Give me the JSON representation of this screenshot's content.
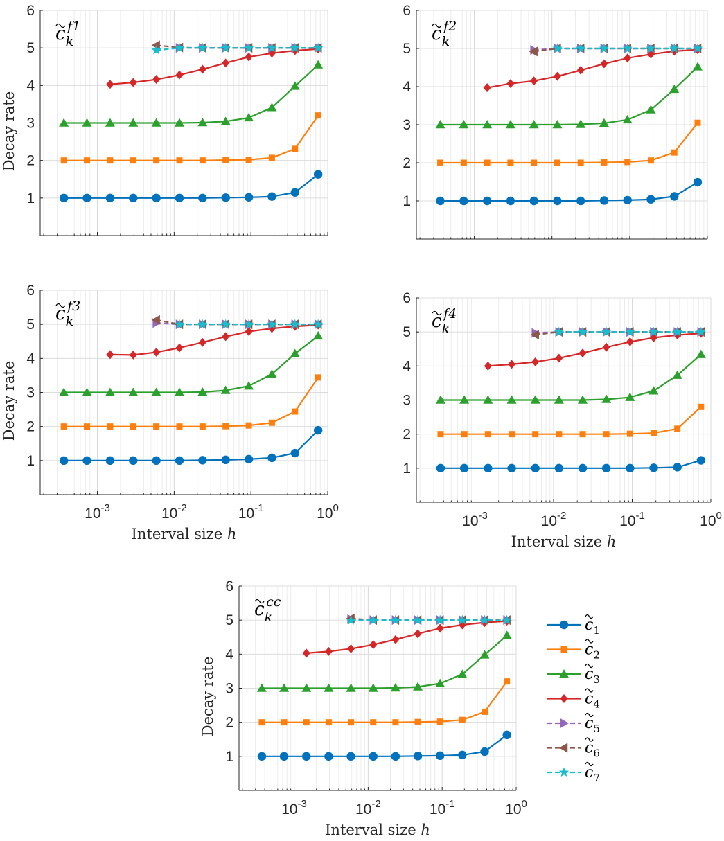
{
  "chart_data": {
    "type": "line",
    "x_scale": "log",
    "xlim": [
      0.00018,
      1.0
    ],
    "ylim": [
      0,
      6
    ],
    "x": [
      0.000366,
      0.000732,
      0.001465,
      0.00293,
      0.00586,
      0.01172,
      0.02344,
      0.04688,
      0.09375,
      0.1875,
      0.375,
      0.75
    ],
    "yticks": [
      "1",
      "2",
      "3",
      "4",
      "5",
      "6"
    ],
    "xticks": [
      {
        "base": "10",
        "exp": "-3",
        "value": 0.001
      },
      {
        "base": "10",
        "exp": "-2",
        "value": 0.01
      },
      {
        "base": "10",
        "exp": "-1",
        "value": 0.1
      },
      {
        "base": "10",
        "exp": "0",
        "value": 1
      }
    ],
    "ylabel": "Decay rate",
    "xlabel": "Interval size h",
    "series_styles": [
      {
        "name": "c̃1",
        "base": "c",
        "sub": "1",
        "color": "#0072BD",
        "marker": "circle",
        "dash": false
      },
      {
        "name": "c̃2",
        "base": "c",
        "sub": "2",
        "color": "#FF7F0E",
        "marker": "square",
        "dash": false
      },
      {
        "name": "c̃3",
        "base": "c",
        "sub": "3",
        "color": "#2CA02C",
        "marker": "triangle-up",
        "dash": false
      },
      {
        "name": "c̃4",
        "base": "c",
        "sub": "4",
        "color": "#D62728",
        "marker": "diamond",
        "dash": false
      },
      {
        "name": "c̃5",
        "base": "c",
        "sub": "5",
        "color": "#9467BD",
        "marker": "triangle-right",
        "dash": true
      },
      {
        "name": "c̃6",
        "base": "c",
        "sub": "6",
        "color": "#8C564B",
        "marker": "triangle-left",
        "dash": true
      },
      {
        "name": "c̃7",
        "base": "c",
        "sub": "7",
        "color": "#17BECF",
        "marker": "star",
        "dash": true
      }
    ],
    "panels": [
      {
        "title_base": "c",
        "title_sub": "k",
        "title_sup": "f1",
        "show_xlabel": false,
        "show_ylabel": true,
        "series": [
          {
            "values": [
              1.0,
              1.0,
              1.0,
              1.0,
              1.0,
              1.0,
              1.0,
              1.01,
              1.02,
              1.04,
              1.15,
              1.63
            ]
          },
          {
            "values": [
              2.0,
              2.0,
              2.0,
              2.0,
              2.0,
              2.0,
              2.0,
              2.01,
              2.02,
              2.07,
              2.31,
              3.2
            ]
          },
          {
            "values": [
              3.0,
              3.0,
              3.0,
              3.0,
              3.0,
              3.0,
              3.01,
              3.04,
              3.14,
              3.41,
              3.98,
              4.55
            ]
          },
          {
            "values": [
              null,
              null,
              4.03,
              4.08,
              4.16,
              4.28,
              4.43,
              4.6,
              4.76,
              4.86,
              4.93,
              4.97
            ]
          },
          {
            "values": [
              null,
              null,
              null,
              null,
              null,
              5.0,
              5.0,
              5.0,
              5.0,
              5.0,
              5.0,
              5.0
            ]
          },
          {
            "values": [
              null,
              null,
              null,
              null,
              5.07,
              5.01,
              5.0,
              5.0,
              5.0,
              5.0,
              5.0,
              5.0
            ]
          },
          {
            "values": [
              null,
              null,
              null,
              null,
              4.94,
              5.0,
              5.0,
              5.0,
              5.0,
              5.0,
              5.0,
              5.0
            ]
          }
        ]
      },
      {
        "title_base": "c",
        "title_sub": "k",
        "title_sup": "f2",
        "show_xlabel": false,
        "show_ylabel": false,
        "series": [
          {
            "values": [
              1.0,
              1.0,
              1.0,
              1.0,
              1.0,
              1.0,
              1.0,
              1.01,
              1.02,
              1.04,
              1.12,
              1.49
            ]
          },
          {
            "values": [
              2.0,
              2.0,
              2.0,
              2.0,
              2.0,
              2.0,
              2.0,
              2.01,
              2.02,
              2.06,
              2.27,
              3.05
            ]
          },
          {
            "values": [
              3.0,
              3.0,
              3.0,
              3.0,
              3.0,
              3.0,
              3.01,
              3.04,
              3.13,
              3.39,
              3.93,
              4.52
            ]
          },
          {
            "values": [
              null,
              null,
              3.97,
              4.08,
              4.15,
              4.27,
              4.43,
              4.6,
              4.75,
              4.85,
              4.93,
              4.97
            ]
          },
          {
            "values": [
              null,
              null,
              null,
              null,
              4.96,
              5.0,
              5.0,
              5.0,
              5.0,
              5.0,
              5.0,
              5.0
            ]
          },
          {
            "values": [
              null,
              null,
              null,
              null,
              4.92,
              5.0,
              5.0,
              5.0,
              5.0,
              5.0,
              5.0,
              5.0
            ]
          },
          {
            "values": [
              null,
              null,
              null,
              null,
              null,
              5.0,
              5.0,
              5.0,
              5.0,
              5.0,
              5.0,
              5.0
            ]
          }
        ]
      },
      {
        "title_base": "c",
        "title_sub": "k",
        "title_sup": "f3",
        "show_xlabel": true,
        "show_ylabel": true,
        "series": [
          {
            "values": [
              1.0,
              1.0,
              1.0,
              1.0,
              1.0,
              1.0,
              1.01,
              1.02,
              1.04,
              1.08,
              1.22,
              1.89
            ]
          },
          {
            "values": [
              2.0,
              2.0,
              2.0,
              2.0,
              2.0,
              2.0,
              2.0,
              2.01,
              2.03,
              2.11,
              2.44,
              3.44
            ]
          },
          {
            "values": [
              3.0,
              3.0,
              3.0,
              3.0,
              3.0,
              3.0,
              3.01,
              3.06,
              3.19,
              3.54,
              4.14,
              4.66
            ]
          },
          {
            "values": [
              null,
              null,
              4.11,
              4.1,
              4.18,
              4.31,
              4.47,
              4.64,
              4.79,
              4.88,
              4.94,
              4.98
            ]
          },
          {
            "values": [
              null,
              null,
              null,
              null,
              5.04,
              5.0,
              5.0,
              5.0,
              5.0,
              5.0,
              5.0,
              5.0
            ]
          },
          {
            "values": [
              null,
              null,
              null,
              null,
              5.13,
              5.0,
              5.0,
              5.0,
              5.0,
              5.0,
              5.0,
              5.0
            ]
          },
          {
            "values": [
              null,
              null,
              null,
              null,
              null,
              5.0,
              5.0,
              5.0,
              5.0,
              5.0,
              5.0,
              5.0
            ]
          }
        ]
      },
      {
        "title_base": "c",
        "title_sub": "k",
        "title_sup": "f4",
        "show_xlabel": true,
        "show_ylabel": false,
        "series": [
          {
            "values": [
              1.0,
              1.0,
              1.0,
              1.0,
              1.0,
              1.0,
              1.0,
              1.0,
              1.0,
              1.01,
              1.03,
              1.23
            ]
          },
          {
            "values": [
              2.0,
              2.0,
              2.0,
              2.0,
              2.0,
              2.0,
              2.0,
              2.0,
              2.01,
              2.03,
              2.16,
              2.8
            ]
          },
          {
            "values": [
              3.0,
              3.0,
              3.0,
              3.0,
              3.0,
              3.0,
              3.0,
              3.02,
              3.08,
              3.27,
              3.73,
              4.34
            ]
          },
          {
            "values": [
              null,
              null,
              4.0,
              4.05,
              4.12,
              4.23,
              4.38,
              4.55,
              4.71,
              4.83,
              4.91,
              4.96
            ]
          },
          {
            "values": [
              null,
              null,
              null,
              null,
              4.97,
              5.0,
              5.0,
              5.0,
              5.0,
              5.0,
              5.0,
              5.0
            ]
          },
          {
            "values": [
              null,
              null,
              null,
              null,
              4.92,
              5.0,
              5.0,
              5.0,
              5.0,
              5.0,
              5.0,
              5.0
            ]
          },
          {
            "values": [
              null,
              null,
              null,
              null,
              null,
              5.0,
              5.0,
              5.0,
              5.0,
              5.0,
              5.0,
              5.0
            ]
          }
        ]
      },
      {
        "title_base": "c",
        "title_sub": "k",
        "title_sup": "cc",
        "show_xlabel": true,
        "show_ylabel": true,
        "series": [
          {
            "values": [
              1.0,
              1.0,
              1.0,
              1.0,
              1.0,
              1.0,
              1.0,
              1.01,
              1.02,
              1.04,
              1.14,
              1.63
            ]
          },
          {
            "values": [
              2.0,
              2.0,
              2.0,
              2.0,
              2.0,
              2.0,
              2.0,
              2.01,
              2.02,
              2.07,
              2.31,
              3.2
            ]
          },
          {
            "values": [
              3.0,
              3.0,
              3.0,
              3.0,
              3.0,
              3.0,
              3.01,
              3.04,
              3.14,
              3.41,
              3.98,
              4.55
            ]
          },
          {
            "values": [
              null,
              null,
              4.03,
              4.08,
              4.16,
              4.28,
              4.43,
              4.6,
              4.76,
              4.86,
              4.93,
              4.97
            ]
          },
          {
            "values": [
              null,
              null,
              null,
              null,
              5.03,
              5.0,
              5.0,
              5.0,
              5.0,
              5.0,
              5.0,
              5.0
            ]
          },
          {
            "values": [
              null,
              null,
              null,
              null,
              5.05,
              5.0,
              5.0,
              5.0,
              5.0,
              5.0,
              5.0,
              5.0
            ]
          },
          {
            "values": [
              null,
              null,
              null,
              null,
              4.99,
              5.0,
              5.0,
              5.0,
              5.0,
              5.0,
              5.0,
              5.0
            ]
          }
        ]
      }
    ]
  }
}
